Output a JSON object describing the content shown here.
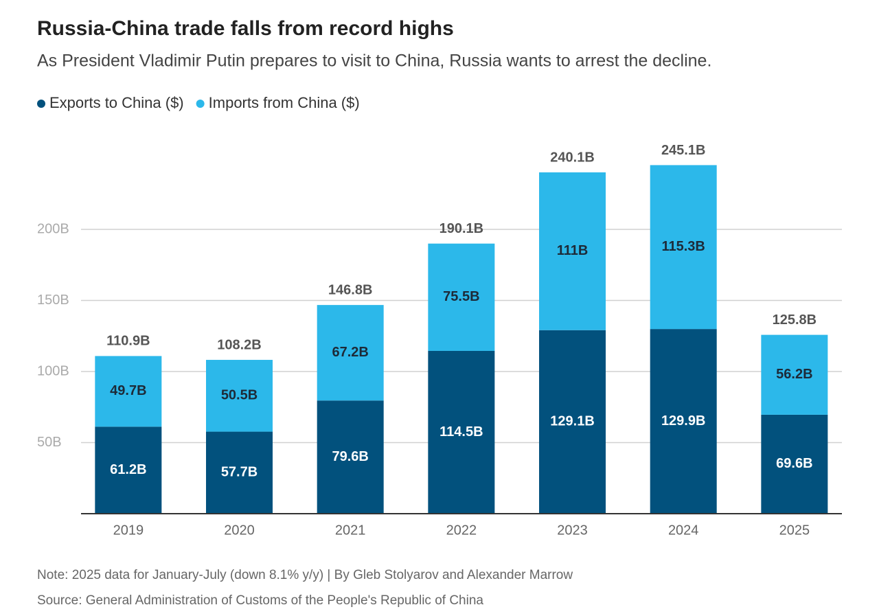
{
  "chart_data": {
    "type": "stacked-bar",
    "title": "Russia-China trade falls from record highs",
    "subtitle": "As President Vladimir Putin prepares to visit to China, Russia wants to arrest the decline.",
    "categories": [
      "2019",
      "2020",
      "2021",
      "2022",
      "2023",
      "2024",
      "2025"
    ],
    "series": [
      {
        "name": "Exports to China ($)",
        "color": "#02517d",
        "values": [
          61.2,
          57.7,
          79.6,
          114.5,
          129.1,
          129.9,
          69.6
        ],
        "value_labels": [
          "61.2B",
          "57.7B",
          "79.6B",
          "114.5B",
          "129.1B",
          "129.9B",
          "69.6B"
        ]
      },
      {
        "name": "Imports from China ($)",
        "color": "#2cb8ea",
        "values": [
          49.7,
          50.5,
          67.2,
          75.5,
          111,
          115.3,
          56.2
        ],
        "value_labels": [
          "49.7B",
          "50.5B",
          "67.2B",
          "75.5B",
          "111B",
          "115.3B",
          "56.2B"
        ]
      }
    ],
    "totals": {
      "values": [
        110.9,
        108.2,
        146.8,
        190.1,
        240.1,
        245.1,
        125.8
      ],
      "value_labels": [
        "110.9B",
        "108.2B",
        "146.8B",
        "190.1B",
        "240.1B",
        "245.1B",
        "125.8B"
      ]
    },
    "ylim": [
      0,
      250
    ],
    "yticks": [
      {
        "value": 50,
        "label": "50B"
      },
      {
        "value": 100,
        "label": "100B"
      },
      {
        "value": 150,
        "label": "150B"
      },
      {
        "value": 200,
        "label": "200B"
      }
    ],
    "grid": true,
    "note": "Note: 2025 data for January-July (down 8.1% y/y) | By Gleb Stolyarov and Alexander Marrow",
    "source": "Source: General Administration of Customs of the People's Republic of China"
  }
}
